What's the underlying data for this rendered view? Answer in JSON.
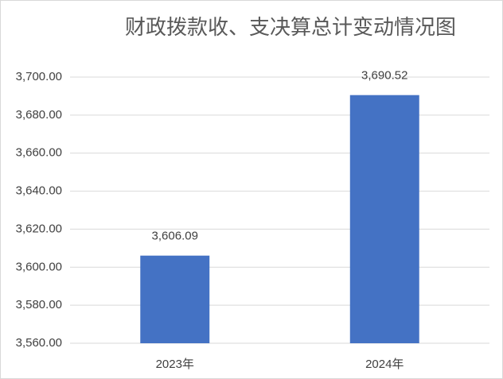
{
  "chart_data": {
    "type": "bar",
    "title": "财政拨款收、支决算总计变动情况图",
    "categories": [
      "2023年",
      "2024年"
    ],
    "values": [
      3606.09,
      3690.52
    ],
    "value_labels": [
      "3,606.09",
      "3,690.52"
    ],
    "color": "#4472c4",
    "ylim": [
      3560,
      3700
    ],
    "yticks": [
      {
        "value": 3560,
        "label": "3,560.00"
      },
      {
        "value": 3580,
        "label": "3,580.00"
      },
      {
        "value": 3600,
        "label": "3,600.00"
      },
      {
        "value": 3620,
        "label": "3,620.00"
      },
      {
        "value": 3640,
        "label": "3,640.00"
      },
      {
        "value": 3660,
        "label": "3,660.00"
      },
      {
        "value": 3680,
        "label": "3,680.00"
      },
      {
        "value": 3700,
        "label": "3,700.00"
      }
    ],
    "grid": true
  }
}
